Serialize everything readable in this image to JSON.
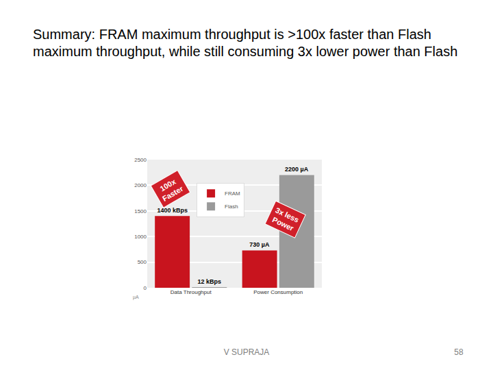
{
  "slide": {
    "title": "Summary: FRAM maximum throughput is >100x faster than Flash maximum throughput, while still consuming 3x lower power than Flash",
    "footer": "V SUPRAJA",
    "page": "58"
  },
  "chart_data": {
    "type": "bar",
    "categories": [
      "Data Throughput",
      "Power Consumption"
    ],
    "series": [
      {
        "name": "FRAM",
        "color": "#c8141e",
        "values": [
          1400,
          730
        ],
        "value_labels": [
          "1400 kBps",
          "730 µA"
        ]
      },
      {
        "name": "Flash",
        "color": "#9a9a9a",
        "values": [
          12,
          2200
        ],
        "value_labels": [
          "12 kBps",
          "2200 µA"
        ]
      }
    ],
    "ylabel": "µA",
    "ylim": [
      0,
      2500
    ],
    "yticks": [
      0,
      500,
      1000,
      1500,
      2000,
      2500
    ],
    "grid": true,
    "legend": "top",
    "data_labels": true,
    "annotations": [
      "100x\nFaster",
      "3x less\nPower"
    ]
  }
}
